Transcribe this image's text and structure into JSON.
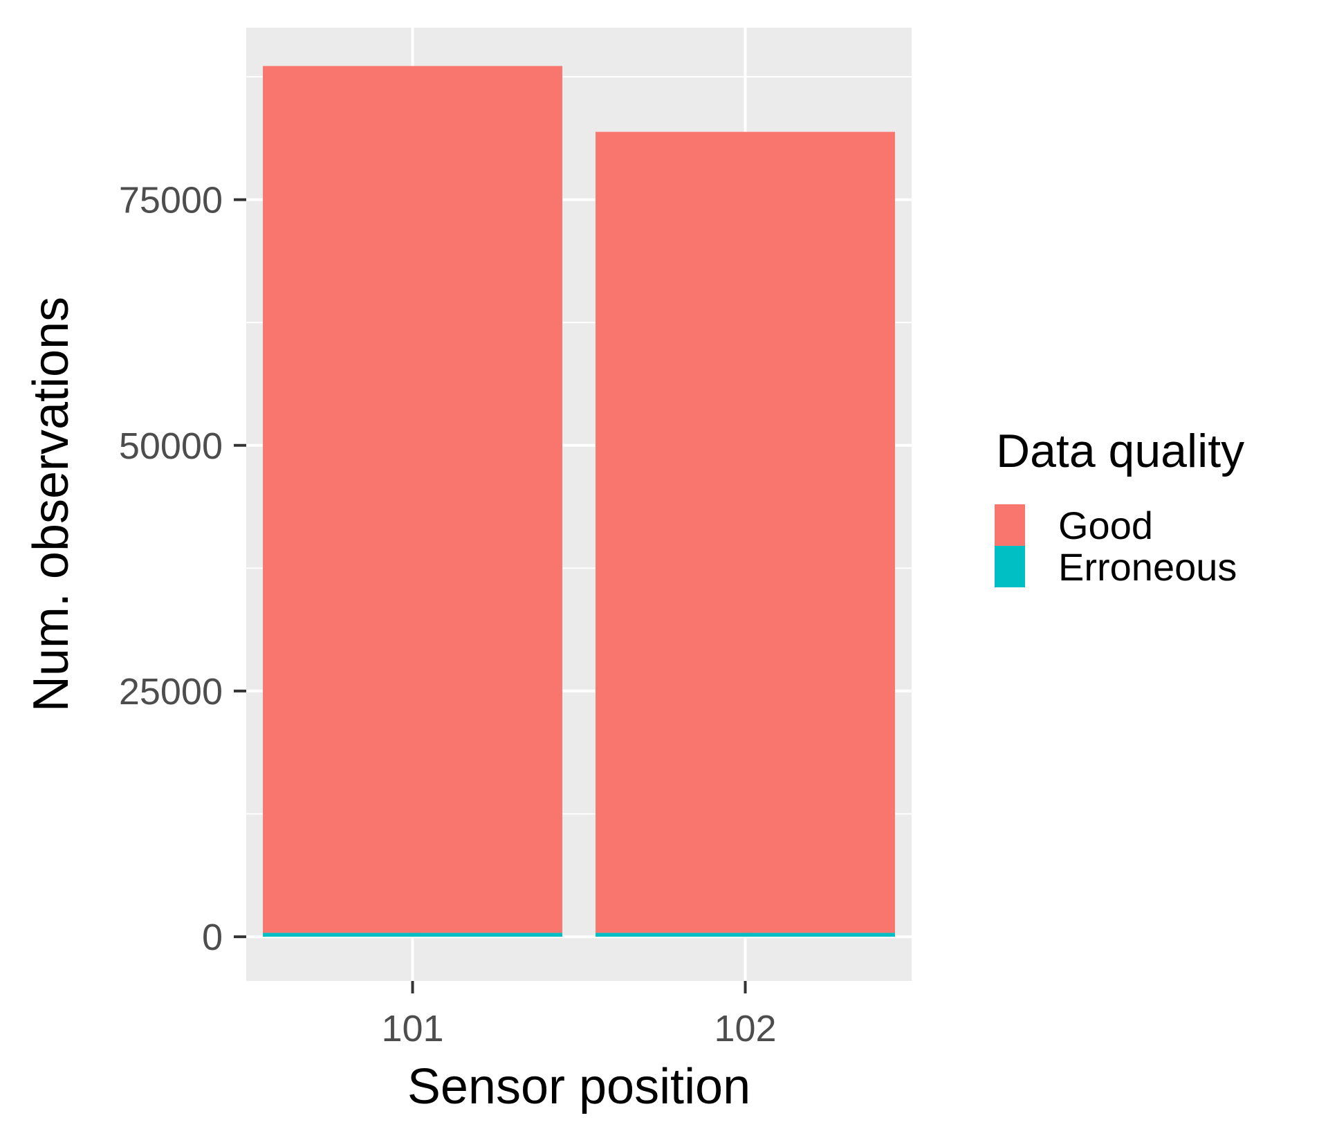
{
  "chart_data": {
    "type": "bar",
    "stacked": true,
    "categories": [
      "101",
      "102"
    ],
    "series": [
      {
        "name": "Good",
        "values": [
          88200,
          81500
        ],
        "color": "#F8766D"
      },
      {
        "name": "Erroneous",
        "values": [
          400,
          400
        ],
        "color": "#00BFC4"
      }
    ],
    "xlabel": "Sensor position",
    "ylabel": "Num. observations",
    "ylim": [
      -4500,
      92500
    ],
    "yticks": [
      0,
      25000,
      50000,
      75000
    ],
    "ytick_labels": [
      "0",
      "25000",
      "50000",
      "75000"
    ],
    "grid": true,
    "legend": {
      "title": "Data quality",
      "position": "right",
      "entries": [
        "Good",
        "Erroneous"
      ]
    },
    "colors": {
      "panel_background": "#EBEBEB",
      "grid": "#FFFFFF",
      "tick_text": "#4D4D4D",
      "tick_mark": "#333333"
    }
  }
}
